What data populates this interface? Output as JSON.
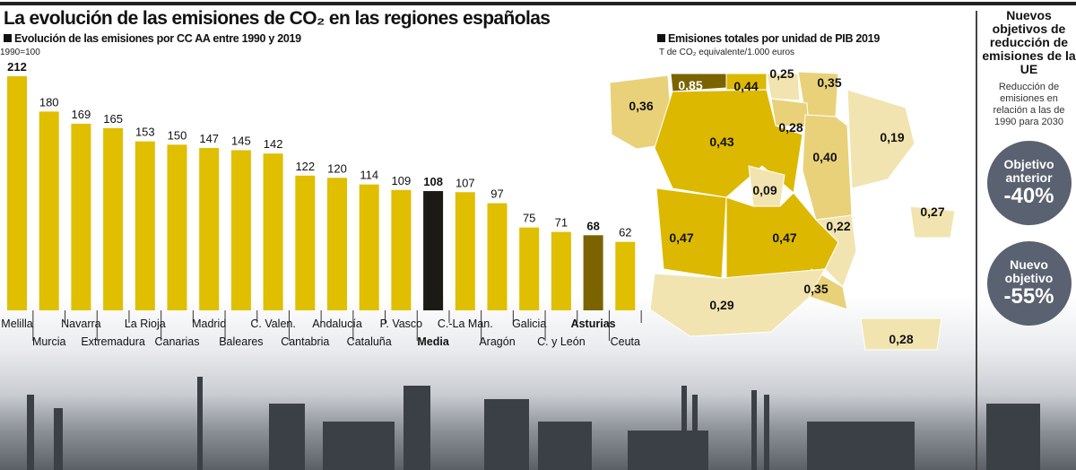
{
  "title": "La evolución de las emisiones de CO₂ en las regiones españolas",
  "colors": {
    "bar": "#e0be00",
    "media": "#1c1a16",
    "asturias": "#7a6300",
    "map_high": "#dcb800",
    "map_mid": "#e9d17a",
    "map_low": "#f2e4b0"
  },
  "chart_data": [
    {
      "type": "bar",
      "title": "Evolución de las emisiones por CC AA entre 1990 y 2019",
      "subtitle": "1990=100",
      "categories": [
        "Melilla",
        "Murcia",
        "Navarra",
        "Extremadura",
        "La Rioja",
        "Canarias",
        "Madrid",
        "Baleares",
        "C. Valen.",
        "Cantabria",
        "Andalucía",
        "Cataluña",
        "P. Vasco",
        "Media",
        "C.-La Man.",
        "Aragón",
        "Galicia",
        "C. y León",
        "Asturias",
        "Ceuta"
      ],
      "values": [
        212,
        180,
        169,
        165,
        153,
        150,
        147,
        145,
        142,
        122,
        120,
        114,
        109,
        108,
        107,
        97,
        75,
        71,
        68,
        62
      ],
      "highlight": {
        "Media": "media",
        "Asturias": "asturias"
      }
    },
    {
      "type": "map",
      "title": "Emisiones totales por unidad de PIB 2019",
      "subtitle": "T de CO₂ equivalente/1.000 euros",
      "regions": [
        {
          "name": "Galicia",
          "value": "0,36",
          "level": "mid"
        },
        {
          "name": "Asturias",
          "value": "0,85",
          "level": "dark"
        },
        {
          "name": "Cantabria",
          "value": "0,44",
          "level": "high"
        },
        {
          "name": "País Vasco",
          "value": "0,25",
          "level": "low"
        },
        {
          "name": "Navarra",
          "value": "0,35",
          "level": "mid"
        },
        {
          "name": "La Rioja",
          "value": "0,28",
          "level": "mid"
        },
        {
          "name": "Castilla y León",
          "value": "0,43",
          "level": "high"
        },
        {
          "name": "Aragón",
          "value": "0,40",
          "level": "mid"
        },
        {
          "name": "Cataluña",
          "value": "0,19",
          "level": "low"
        },
        {
          "name": "Madrid",
          "value": "0,09",
          "level": "low"
        },
        {
          "name": "Extremadura",
          "value": "0,47",
          "level": "high"
        },
        {
          "name": "Castilla-La Mancha",
          "value": "0,47",
          "level": "high"
        },
        {
          "name": "C. Valenciana",
          "value": "0,22",
          "level": "low"
        },
        {
          "name": "Baleares",
          "value": "0,27",
          "level": "low"
        },
        {
          "name": "Murcia",
          "value": "0,35",
          "level": "mid"
        },
        {
          "name": "Andalucía",
          "value": "0,29",
          "level": "low"
        },
        {
          "name": "Canarias",
          "value": "0,28",
          "level": "low"
        }
      ]
    }
  ],
  "panel": {
    "title": "Nuevos objetivos de reducción de emisiones de la UE",
    "text": "Reducción de emisiones en relación a las de 1990 para 2030",
    "old": {
      "label1": "Objetivo",
      "label2": "anterior",
      "value": "-40%"
    },
    "new": {
      "label1": "Nuevo",
      "label2": "objetivo",
      "value": "-55%"
    }
  }
}
